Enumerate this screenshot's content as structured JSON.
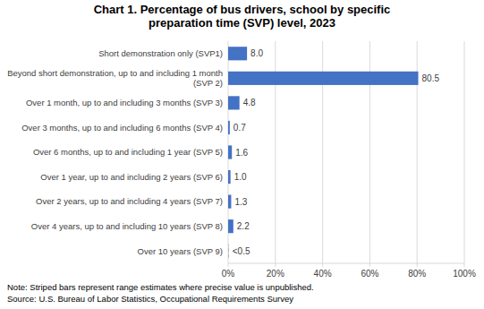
{
  "chart_data": {
    "type": "bar",
    "orientation": "horizontal",
    "title": "Chart 1. Percentage of bus drivers, school by specific\npreparation time (SVP) level, 2023",
    "categories": [
      "Short demonstration only (SVP1)",
      "Beyond short demonstration, up to and including 1 month\n(SVP 2)",
      "Over 1 month, up to and including 3 months (SVP 3)",
      "Over 3 months, up to and including 6 months (SVP 4)",
      "Over 6 months, up to and including 1 year (SVP 5)",
      "Over 1 year, up to and including 2 years (SVP 6)",
      "Over 2 years, up to and including 4 years (SVP 7)",
      "Over 4 years, up to and including 10 years (SVP 8)",
      "Over 10 years (SVP 9)"
    ],
    "values": [
      8.0,
      80.5,
      4.8,
      0.7,
      1.6,
      1.0,
      1.3,
      2.2,
      0.3
    ],
    "value_labels": [
      "8.0",
      "80.5",
      "4.8",
      "0.7",
      "1.6",
      "1.0",
      "1.3",
      "2.2",
      "<0.5"
    ],
    "data_labels": true,
    "color": "#4472C4",
    "colors": [
      "#4472C4",
      "#4472C4",
      "#4472C4",
      "#4472C4",
      "#4472C4",
      "#4472C4",
      "#4472C4",
      "#4472C4",
      "#aaaaaa"
    ],
    "xlim": [
      0,
      100
    ],
    "xticks": [
      {
        "value": 0,
        "label": "0%"
      },
      {
        "value": 20,
        "label": "20%"
      },
      {
        "value": 40,
        "label": "40%"
      },
      {
        "value": 60,
        "label": "60%"
      },
      {
        "value": 80,
        "label": "80%"
      },
      {
        "value": 100,
        "label": "100%"
      }
    ],
    "grid": true,
    "annotations": [
      "Note: Striped bars represent range estimates where precise value is unpublished.",
      "Source: U.S. Bureau of Labor Statistics, Occupational Requirements Survey"
    ]
  }
}
